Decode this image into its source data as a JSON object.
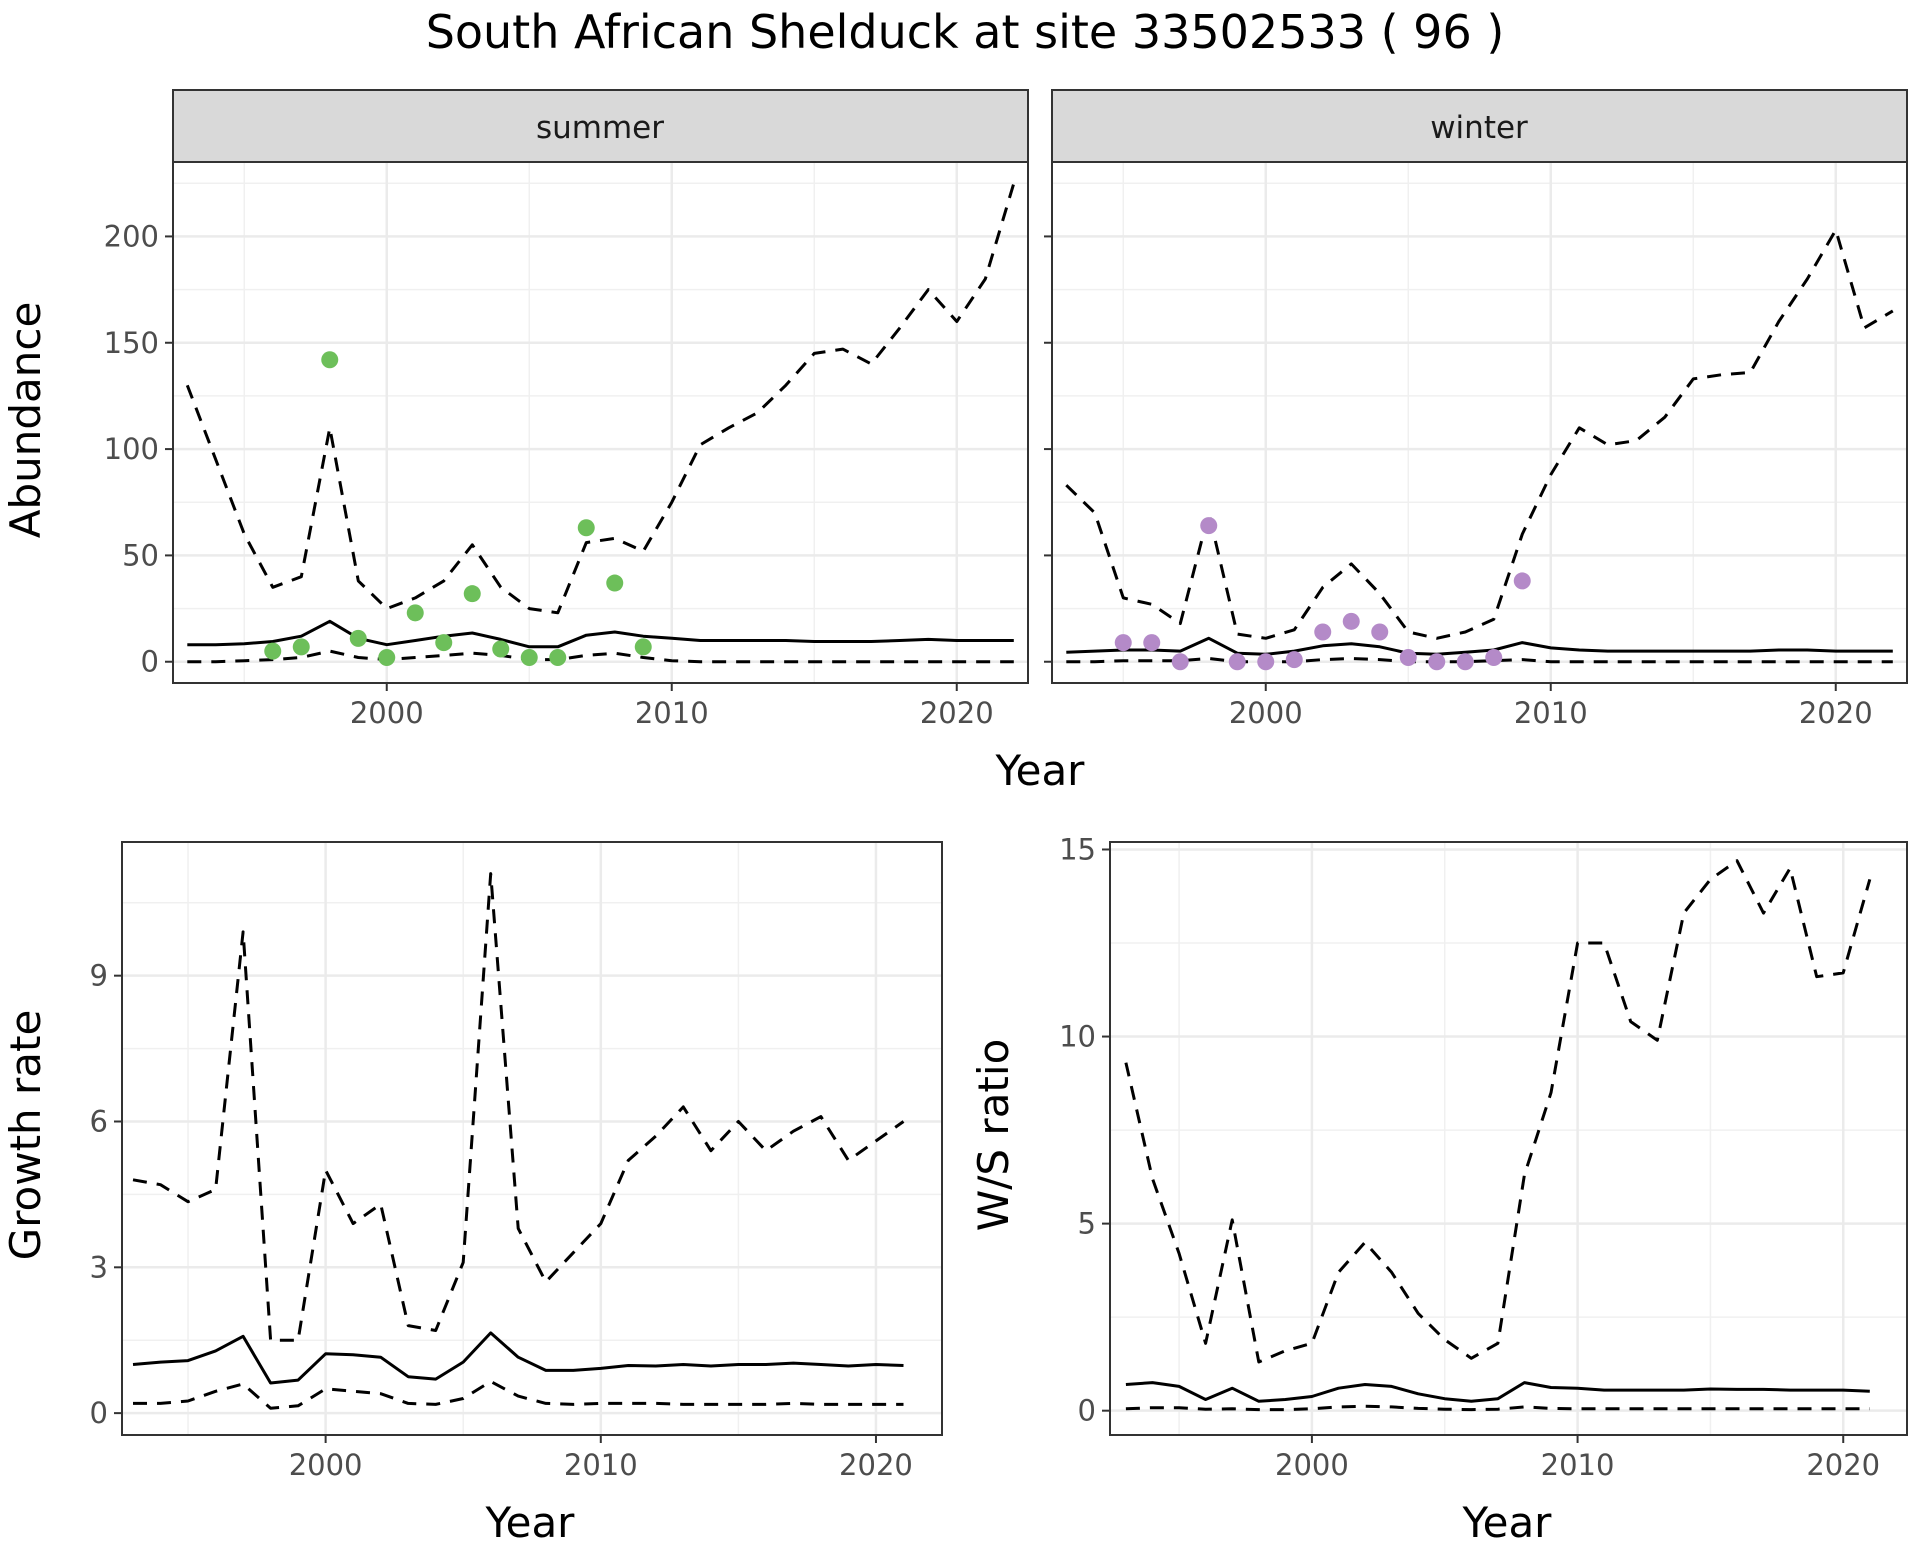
{
  "title": "South African Shelduck at site 33502533 ( 96 )",
  "colors": {
    "summer_points": "#6dbf5a",
    "winter_points": "#b48ac8",
    "line": "#000000",
    "strip": "#d9d9d9"
  },
  "shared_x_label": "Year",
  "chart_data": [
    {
      "id": "summer",
      "type": "line",
      "strip": "summer",
      "xlim": [
        1992.5,
        2022.5
      ],
      "ylim": [
        -10,
        235
      ],
      "xticks": [
        2000,
        2010,
        2020
      ],
      "yticks": [
        0,
        50,
        100,
        150,
        200
      ],
      "ylabel": "Abundance",
      "point_color": "#6dbf5a",
      "series": [
        {
          "style": "solid",
          "x": [
            1993,
            1994,
            1995,
            1996,
            1997,
            1998,
            1999,
            2000,
            2001,
            2002,
            2003,
            2004,
            2005,
            2006,
            2007,
            2008,
            2009,
            2010,
            2011,
            2012,
            2013,
            2014,
            2015,
            2016,
            2017,
            2018,
            2019,
            2020,
            2021,
            2022
          ],
          "values": [
            8,
            8,
            8.5,
            9.5,
            12,
            19,
            11,
            8,
            10,
            12,
            13.5,
            10.5,
            7,
            7,
            12.5,
            14,
            12,
            11,
            10,
            10,
            10,
            10,
            9.5,
            9.5,
            9.5,
            10,
            10.5,
            10,
            10,
            10
          ]
        },
        {
          "style": "dashed",
          "x": [
            1993,
            1994,
            1995,
            1996,
            1997,
            1998,
            1999,
            2000,
            2001,
            2002,
            2003,
            2004,
            2005,
            2006,
            2007,
            2008,
            2009,
            2010,
            2011,
            2012,
            2013,
            2014,
            2015,
            2016,
            2017,
            2018,
            2019,
            2020,
            2021,
            2022
          ],
          "values": [
            130,
            95,
            60,
            35,
            40,
            110,
            38,
            25,
            30,
            38,
            55,
            35,
            25,
            23,
            56,
            58,
            52,
            75,
            102,
            110,
            117,
            130,
            145,
            147,
            140,
            157,
            175,
            160,
            180,
            225
          ]
        },
        {
          "style": "dashed",
          "x": [
            1993,
            1994,
            1995,
            1996,
            1997,
            1998,
            1999,
            2000,
            2001,
            2002,
            2003,
            2004,
            2005,
            2006,
            2007,
            2008,
            2009,
            2010,
            2011,
            2012,
            2013,
            2014,
            2015,
            2016,
            2017,
            2018,
            2019,
            2020,
            2021,
            2022
          ],
          "values": [
            0,
            0,
            0.5,
            1,
            2,
            5,
            2,
            1,
            2,
            3,
            4,
            3,
            1,
            1,
            3,
            4,
            2,
            0.5,
            0,
            0,
            0,
            0,
            0,
            0,
            0,
            0,
            0,
            0,
            0,
            0
          ]
        }
      ],
      "points": {
        "x": [
          1996,
          1997,
          1998,
          1999,
          2000,
          2001,
          2002,
          2003,
          2004,
          2005,
          2006,
          2007,
          2008,
          2009
        ],
        "values": [
          5,
          7,
          142,
          11,
          2,
          23,
          9,
          32,
          6,
          2,
          2,
          63,
          37,
          7
        ]
      }
    },
    {
      "id": "winter",
      "type": "line",
      "strip": "winter",
      "xlim": [
        1992.5,
        2022.5
      ],
      "ylim": [
        -10,
        235
      ],
      "xticks": [
        2000,
        2010,
        2020
      ],
      "yticks": [
        0,
        50,
        100,
        150,
        200
      ],
      "ylabel": "",
      "point_color": "#b48ac8",
      "series": [
        {
          "style": "solid",
          "x": [
            1993,
            1994,
            1995,
            1996,
            1997,
            1998,
            1999,
            2000,
            2001,
            2002,
            2003,
            2004,
            2005,
            2006,
            2007,
            2008,
            2009,
            2010,
            2011,
            2012,
            2013,
            2014,
            2015,
            2016,
            2017,
            2018,
            2019,
            2020,
            2021,
            2022
          ],
          "values": [
            4.5,
            5,
            5.5,
            5.5,
            5,
            11,
            4,
            3.5,
            5,
            7.5,
            8.5,
            7,
            4,
            3.5,
            4.5,
            5.5,
            9,
            6.5,
            5.5,
            5,
            5,
            5,
            5,
            5,
            5,
            5.5,
            5.5,
            5,
            5,
            5
          ]
        },
        {
          "style": "dashed",
          "x": [
            1993,
            1994,
            1995,
            1996,
            1997,
            1998,
            1999,
            2000,
            2001,
            2002,
            2003,
            2004,
            2005,
            2006,
            2007,
            2008,
            2009,
            2010,
            2011,
            2012,
            2013,
            2014,
            2015,
            2016,
            2017,
            2018,
            2019,
            2020,
            2021,
            2022
          ],
          "values": [
            83,
            70,
            30,
            27,
            18,
            70,
            13,
            11,
            15,
            35,
            46,
            32,
            14,
            11,
            14,
            20,
            60,
            88,
            110,
            102,
            104,
            115,
            133,
            135,
            136,
            160,
            180,
            203,
            157,
            165
          ]
        },
        {
          "style": "dashed",
          "x": [
            1993,
            1994,
            1995,
            1996,
            1997,
            1998,
            1999,
            2000,
            2001,
            2002,
            2003,
            2004,
            2005,
            2006,
            2007,
            2008,
            2009,
            2010,
            2011,
            2012,
            2013,
            2014,
            2015,
            2016,
            2017,
            2018,
            2019,
            2020,
            2021,
            2022
          ],
          "values": [
            0,
            0,
            0.5,
            0.5,
            0.5,
            1.5,
            0,
            0,
            0,
            1,
            1.5,
            1,
            0,
            0,
            0,
            0.5,
            1,
            0,
            0,
            0,
            0,
            0,
            0,
            0,
            0,
            0,
            0,
            0,
            0,
            0
          ]
        }
      ],
      "points": {
        "x": [
          1995,
          1996,
          1997,
          1998,
          1999,
          2000,
          2001,
          2002,
          2003,
          2004,
          2005,
          2006,
          2007,
          2008,
          2009
        ],
        "values": [
          9,
          9,
          0,
          64,
          0,
          0,
          1,
          14,
          19,
          14,
          2,
          0,
          0,
          2,
          38
        ]
      }
    },
    {
      "id": "growth",
      "type": "line",
      "strip": "",
      "xlim": [
        1992.6,
        2022.4
      ],
      "ylim": [
        -0.45,
        11.75
      ],
      "xticks": [
        2000,
        2010,
        2020
      ],
      "yticks": [
        0,
        3,
        6,
        9
      ],
      "ylabel": "Growth rate",
      "xlabel": "Year",
      "series": [
        {
          "style": "solid",
          "x": [
            1993,
            1994,
            1995,
            1996,
            1997,
            1998,
            1999,
            2000,
            2001,
            2002,
            2003,
            2004,
            2005,
            2006,
            2007,
            2008,
            2009,
            2010,
            2011,
            2012,
            2013,
            2014,
            2015,
            2016,
            2017,
            2018,
            2019,
            2020,
            2021
          ],
          "values": [
            1.0,
            1.05,
            1.08,
            1.28,
            1.58,
            0.62,
            0.68,
            1.22,
            1.2,
            1.15,
            0.75,
            0.7,
            1.05,
            1.65,
            1.15,
            0.88,
            0.88,
            0.92,
            0.98,
            0.97,
            1.0,
            0.97,
            1.0,
            1.0,
            1.03,
            1.0,
            0.97,
            1.0,
            0.98
          ]
        },
        {
          "style": "dashed",
          "x": [
            1993,
            1994,
            1995,
            1996,
            1997,
            1998,
            1999,
            2000,
            2001,
            2002,
            2003,
            2004,
            2005,
            2006,
            2007,
            2008,
            2009,
            2010,
            2011,
            2012,
            2013,
            2014,
            2015,
            2016,
            2017,
            2018,
            2019,
            2020,
            2021
          ],
          "values": [
            4.8,
            4.7,
            4.35,
            4.6,
            9.9,
            1.5,
            1.5,
            5.0,
            3.9,
            4.3,
            1.8,
            1.7,
            3.1,
            11.1,
            3.8,
            2.7,
            3.3,
            3.9,
            5.2,
            5.7,
            6.3,
            5.4,
            6.0,
            5.4,
            5.8,
            6.1,
            5.2,
            5.6,
            6.0
          ]
        },
        {
          "style": "dashed",
          "x": [
            1993,
            1994,
            1995,
            1996,
            1997,
            1998,
            1999,
            2000,
            2001,
            2002,
            2003,
            2004,
            2005,
            2006,
            2007,
            2008,
            2009,
            2010,
            2011,
            2012,
            2013,
            2014,
            2015,
            2016,
            2017,
            2018,
            2019,
            2020,
            2021
          ],
          "values": [
            0.2,
            0.2,
            0.25,
            0.45,
            0.6,
            0.1,
            0.15,
            0.5,
            0.45,
            0.4,
            0.2,
            0.18,
            0.3,
            0.65,
            0.35,
            0.2,
            0.18,
            0.2,
            0.2,
            0.2,
            0.18,
            0.18,
            0.18,
            0.18,
            0.2,
            0.18,
            0.18,
            0.18,
            0.18
          ]
        }
      ]
    },
    {
      "id": "ratio",
      "type": "line",
      "strip": "",
      "xlim": [
        1992.4,
        2022.4
      ],
      "ylim": [
        -0.65,
        15.2
      ],
      "xticks": [
        2000,
        2010,
        2020
      ],
      "yticks": [
        0,
        5,
        10,
        15
      ],
      "ylabel": "W/S ratio",
      "xlabel": "Year",
      "series": [
        {
          "style": "solid",
          "x": [
            1993,
            1994,
            1995,
            1996,
            1997,
            1998,
            1999,
            2000,
            2001,
            2002,
            2003,
            2004,
            2005,
            2006,
            2007,
            2008,
            2009,
            2010,
            2011,
            2012,
            2013,
            2014,
            2015,
            2016,
            2017,
            2018,
            2019,
            2020,
            2021
          ],
          "values": [
            0.7,
            0.75,
            0.65,
            0.3,
            0.6,
            0.25,
            0.3,
            0.38,
            0.6,
            0.7,
            0.65,
            0.45,
            0.32,
            0.25,
            0.32,
            0.75,
            0.62,
            0.6,
            0.55,
            0.55,
            0.55,
            0.55,
            0.58,
            0.57,
            0.57,
            0.55,
            0.55,
            0.55,
            0.52
          ]
        },
        {
          "style": "dashed",
          "x": [
            1993,
            1994,
            1995,
            1996,
            1997,
            1998,
            1999,
            2000,
            2001,
            2002,
            2003,
            2004,
            2005,
            2006,
            2007,
            2008,
            2009,
            2010,
            2011,
            2012,
            2013,
            2014,
            2015,
            2016,
            2017,
            2018,
            2019,
            2020,
            2021
          ],
          "values": [
            9.3,
            6.2,
            4.2,
            1.8,
            5.1,
            1.3,
            1.6,
            1.8,
            3.7,
            4.5,
            3.7,
            2.6,
            1.9,
            1.4,
            1.8,
            6.3,
            8.5,
            12.5,
            12.5,
            10.4,
            9.9,
            13.3,
            14.2,
            14.7,
            13.3,
            14.5,
            11.6,
            11.7,
            14.2
          ]
        },
        {
          "style": "dashed",
          "x": [
            1993,
            1994,
            1995,
            1996,
            1997,
            1998,
            1999,
            2000,
            2001,
            2002,
            2003,
            2004,
            2005,
            2006,
            2007,
            2008,
            2009,
            2010,
            2011,
            2012,
            2013,
            2014,
            2015,
            2016,
            2017,
            2018,
            2019,
            2020,
            2021
          ],
          "values": [
            0.05,
            0.08,
            0.08,
            0.04,
            0.05,
            0.03,
            0.03,
            0.05,
            0.1,
            0.12,
            0.1,
            0.06,
            0.04,
            0.03,
            0.04,
            0.1,
            0.06,
            0.05,
            0.05,
            0.05,
            0.05,
            0.05,
            0.05,
            0.05,
            0.05,
            0.05,
            0.05,
            0.05,
            0.05
          ]
        }
      ]
    }
  ]
}
